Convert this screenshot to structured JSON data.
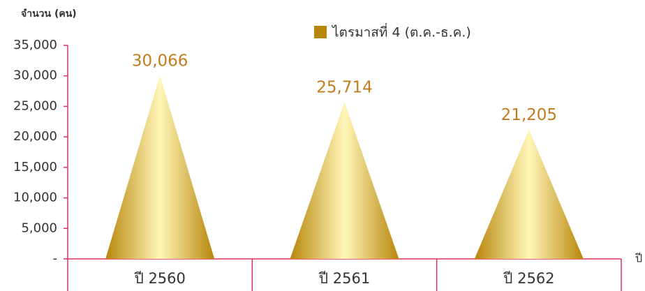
{
  "chart_data": {
    "type": "cone",
    "y_axis_label": "จำนวน (คน)",
    "x_axis_label": "ปี",
    "categories": [
      "ปี 2560",
      "ปี 2561",
      "ปี 2562"
    ],
    "series": [
      {
        "name": "ไตรมาสที่ 4 (ต.ค.-ธ.ค.)",
        "color": "#b8860b",
        "values": [
          30066,
          25714,
          21205
        ],
        "value_labels": [
          "30,066",
          "25,714",
          "21,205"
        ]
      }
    ],
    "ylim": [
      0,
      35000
    ],
    "yticks": [
      {
        "value": 0,
        "label": "-"
      },
      {
        "value": 5000,
        "label": "5,000"
      },
      {
        "value": 10000,
        "label": "10,000"
      },
      {
        "value": 15000,
        "label": "15,000"
      },
      {
        "value": 20000,
        "label": "20,000"
      },
      {
        "value": 25000,
        "label": "25,000"
      },
      {
        "value": 30000,
        "label": "30,000"
      },
      {
        "value": 35000,
        "label": "35,000"
      }
    ]
  }
}
